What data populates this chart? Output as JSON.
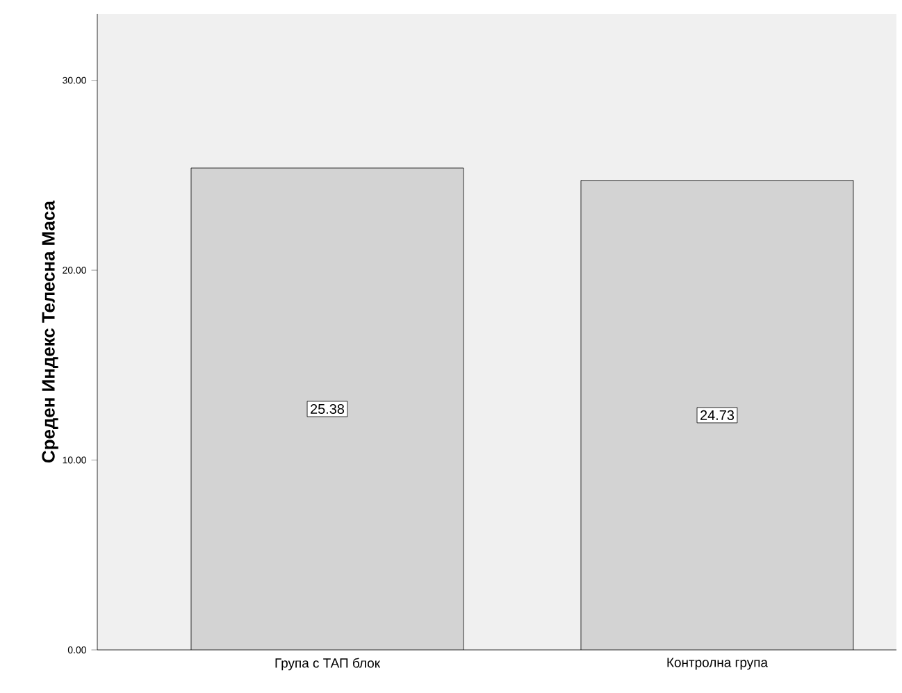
{
  "chart_data": {
    "type": "bar",
    "ylabel": "Среден Индекс Телесна Маса",
    "categories": [
      "Група с ТАП блок",
      "Контролна група"
    ],
    "values": [
      25.38,
      24.73
    ],
    "color": "#d3d3d3",
    "data_labels": true,
    "ylim": [
      0,
      33.5
    ],
    "yticks": [
      {
        "value": 0,
        "label": "0.00"
      },
      {
        "value": 10,
        "label": "10.00"
      },
      {
        "value": 20,
        "label": "20.00"
      },
      {
        "value": 30,
        "label": "30.00"
      }
    ],
    "grid": false
  }
}
